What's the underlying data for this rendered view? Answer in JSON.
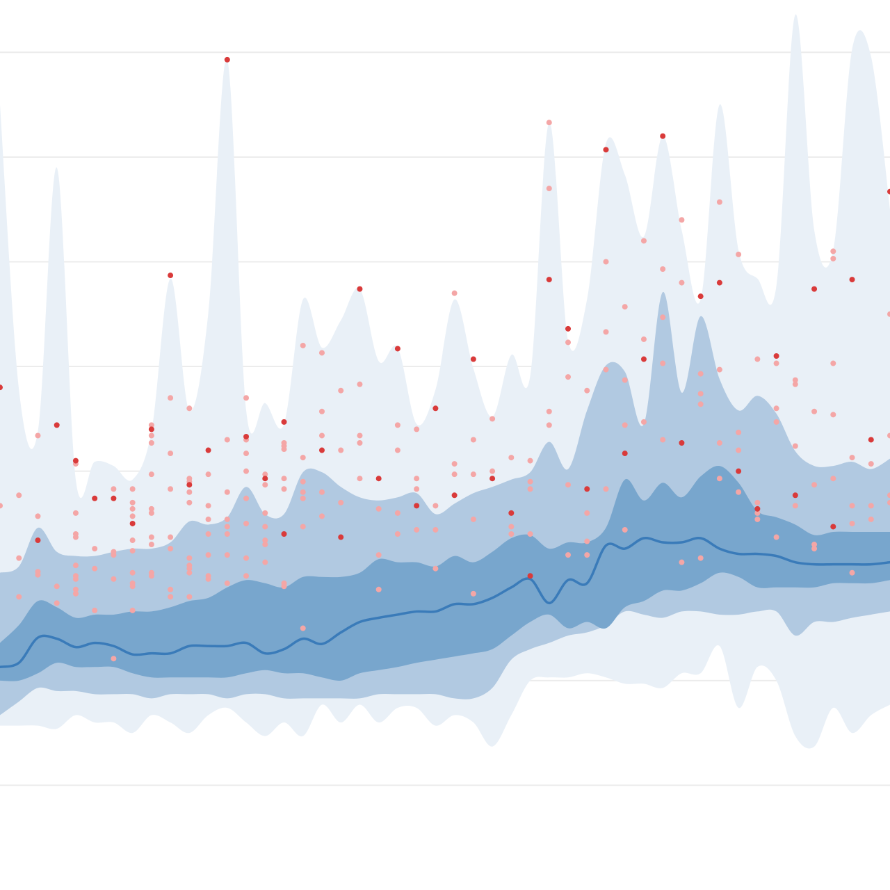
{
  "chart_data": {
    "type": "fan",
    "x": [
      0,
      1,
      2,
      3,
      4,
      5,
      6,
      7,
      8,
      9,
      10,
      11,
      12,
      13,
      14,
      15,
      16,
      17,
      18,
      19,
      20,
      21,
      22,
      23,
      24,
      25,
      26,
      27,
      28,
      29,
      30,
      31,
      32,
      33,
      34,
      35,
      36,
      37,
      38,
      39,
      40,
      41,
      42,
      43,
      44,
      45,
      46,
      47
    ],
    "xlim": [
      0,
      47
    ],
    "ylim": [
      -1,
      7.5
    ],
    "yticks": [
      0,
      1,
      2,
      3,
      4,
      5,
      6,
      7
    ],
    "grid": true,
    "grid_color": "#ececec",
    "bands": [
      {
        "color": "#e9f0f7",
        "upper": [
          6.5,
          3.78,
          3.38,
          5.9,
          2.92,
          3.09,
          3.05,
          2.92,
          3.38,
          4.84,
          3.58,
          4.51,
          6.93,
          3.58,
          3.65,
          3.45,
          4.64,
          4.18,
          4.44,
          4.74,
          4.05,
          4.18,
          3.45,
          3.78,
          4.64,
          3.98,
          3.52,
          4.11,
          3.91,
          6.33,
          4.25,
          4.64,
          6.13,
          5.83,
          5.24,
          6.2,
          5.3,
          4.64,
          6.5,
          5.11,
          4.84,
          4.77,
          7.36,
          5.3,
          5.11,
          7.03,
          6.96,
          5.5
        ],
        "lower": [
          0.57,
          0.57,
          0.57,
          0.54,
          0.67,
          0.6,
          0.6,
          0.5,
          0.67,
          0.6,
          0.5,
          0.67,
          0.74,
          0.6,
          0.47,
          0.6,
          0.47,
          0.77,
          0.6,
          0.77,
          0.6,
          0.74,
          0.74,
          0.57,
          0.67,
          0.6,
          0.37,
          0.67,
          1.0,
          1.03,
          1.03,
          1.07,
          1.03,
          0.97,
          0.97,
          0.93,
          1.07,
          1.07,
          1.33,
          0.74,
          1.13,
          1.0,
          0.47,
          0.37,
          0.74,
          0.5,
          0.67,
          0.77
        ]
      },
      {
        "color": "#b1c9e1",
        "upper": [
          2.03,
          2.09,
          2.46,
          2.23,
          2.19,
          2.19,
          2.23,
          2.26,
          2.26,
          2.32,
          2.52,
          2.49,
          2.56,
          2.85,
          2.59,
          2.59,
          2.99,
          2.99,
          2.85,
          2.75,
          2.72,
          2.75,
          2.79,
          2.59,
          2.69,
          2.79,
          2.85,
          2.92,
          2.99,
          3.28,
          3.02,
          3.58,
          4.01,
          3.95,
          3.45,
          4.71,
          3.75,
          4.48,
          3.88,
          3.58,
          3.72,
          3.55,
          3.19,
          3.05,
          3.05,
          3.09,
          3.02,
          3.12
        ],
        "lower": [
          0.67,
          0.8,
          0.93,
          0.9,
          0.9,
          0.87,
          0.87,
          0.87,
          0.83,
          0.87,
          0.87,
          0.87,
          0.83,
          0.87,
          0.87,
          0.83,
          0.83,
          0.83,
          0.83,
          0.83,
          0.87,
          0.87,
          0.87,
          0.87,
          0.83,
          0.83,
          0.93,
          1.2,
          1.3,
          1.36,
          1.43,
          1.46,
          1.53,
          1.66,
          1.63,
          1.6,
          1.66,
          1.66,
          1.63,
          1.63,
          1.66,
          1.66,
          1.43,
          1.56,
          1.56,
          1.6,
          1.63,
          1.66
        ]
      },
      {
        "color": "#78a6cd",
        "upper": [
          1.36,
          1.53,
          1.76,
          1.7,
          1.6,
          1.63,
          1.63,
          1.66,
          1.66,
          1.7,
          1.76,
          1.79,
          1.89,
          1.96,
          1.93,
          1.89,
          1.99,
          1.99,
          1.99,
          2.03,
          2.16,
          2.13,
          2.13,
          2.09,
          2.19,
          2.13,
          2.23,
          2.36,
          2.39,
          2.26,
          2.32,
          2.32,
          2.46,
          2.92,
          2.72,
          2.89,
          2.75,
          2.95,
          3.05,
          2.89,
          2.62,
          2.56,
          2.49,
          2.39,
          2.42,
          2.42,
          2.42,
          2.42
        ],
        "lower": [
          1.0,
          1.0,
          1.07,
          1.17,
          1.13,
          1.13,
          1.13,
          1.07,
          1.03,
          1.03,
          1.03,
          1.03,
          1.03,
          1.07,
          1.1,
          1.07,
          1.07,
          1.03,
          1.0,
          1.07,
          1.1,
          1.13,
          1.17,
          1.2,
          1.23,
          1.26,
          1.3,
          1.43,
          1.56,
          1.63,
          1.5,
          1.56,
          1.5,
          1.7,
          1.76,
          1.86,
          1.86,
          1.93,
          2.03,
          1.99,
          1.89,
          1.89,
          1.89,
          1.89,
          1.93,
          1.93,
          1.93,
          1.96
        ]
      }
    ],
    "line": {
      "color": "#3a7bb9",
      "values": [
        1.13,
        1.17,
        1.41,
        1.4,
        1.32,
        1.36,
        1.33,
        1.25,
        1.26,
        1.26,
        1.33,
        1.33,
        1.33,
        1.36,
        1.26,
        1.3,
        1.4,
        1.35,
        1.46,
        1.56,
        1.6,
        1.63,
        1.66,
        1.66,
        1.73,
        1.73,
        1.79,
        1.89,
        1.97,
        1.74,
        1.96,
        1.93,
        2.29,
        2.26,
        2.36,
        2.32,
        2.32,
        2.36,
        2.26,
        2.21,
        2.21,
        2.19,
        2.13,
        2.11,
        2.11,
        2.11,
        2.11,
        2.13
      ]
    },
    "points": [
      {
        "color": "#f4a6a6",
        "x": [
          0,
          1,
          1,
          1,
          2,
          2,
          2,
          2,
          3,
          3,
          4,
          4,
          4,
          4,
          4,
          4,
          4,
          4,
          4,
          5,
          5,
          5,
          6,
          6,
          6,
          6,
          6,
          7,
          7,
          7,
          7,
          7,
          7,
          7,
          7,
          7,
          7,
          8,
          8,
          8,
          8,
          8,
          8,
          8,
          8,
          8,
          8,
          9,
          9,
          9,
          9,
          9,
          9,
          9,
          10,
          10,
          10,
          10,
          10,
          10,
          10,
          10,
          10,
          10,
          11,
          11,
          11,
          11,
          11,
          11,
          11,
          12,
          12,
          12,
          12,
          12,
          12,
          12,
          13,
          13,
          13,
          13,
          13,
          13,
          13,
          13,
          14,
          14,
          14,
          14,
          14,
          14,
          14,
          15,
          15,
          15,
          15,
          15,
          15,
          15,
          16,
          16,
          16,
          16,
          16,
          16,
          16,
          17,
          17,
          17,
          17,
          17,
          18,
          18,
          18,
          19,
          19,
          19,
          19,
          20,
          20,
          20,
          21,
          21,
          21,
          21,
          22,
          22,
          22,
          22,
          23,
          23,
          23,
          24,
          24,
          24,
          25,
          25,
          25,
          25,
          26,
          26,
          27,
          27,
          27,
          28,
          28,
          28,
          28,
          29,
          29,
          29,
          29,
          30,
          30,
          30,
          30,
          31,
          31,
          31,
          31,
          32,
          32,
          32,
          32,
          33,
          33,
          33,
          33,
          34,
          34,
          34,
          35,
          35,
          35,
          35,
          36,
          36,
          36,
          37,
          37,
          37,
          37,
          38,
          38,
          38,
          38,
          39,
          39,
          39,
          39,
          40,
          40,
          40,
          40,
          41,
          41,
          41,
          41,
          42,
          42,
          42,
          42,
          43,
          43,
          43,
          43,
          44,
          44,
          44,
          44,
          44,
          45,
          45,
          45,
          45,
          46,
          46,
          46,
          47,
          47,
          47,
          47
        ],
        "values": [
          2.67,
          2.77,
          2.17,
          1.8,
          3.34,
          2.57,
          2.04,
          2.01,
          1.9,
          1.74,
          3.07,
          2.6,
          2.4,
          2.37,
          2.1,
          2.0,
          1.97,
          1.87,
          1.83,
          2.26,
          2.07,
          1.67,
          2.83,
          2.23,
          2.2,
          1.97,
          1.21,
          2.83,
          2.7,
          2.64,
          2.57,
          2.34,
          2.24,
          2.03,
          1.93,
          1.9,
          1.67,
          3.44,
          3.34,
          3.27,
          2.97,
          2.64,
          2.6,
          2.37,
          2.3,
          2.03,
          2.0,
          3.7,
          3.17,
          2.83,
          2.37,
          2.26,
          1.87,
          1.8,
          3.6,
          2.93,
          2.9,
          2.8,
          2.7,
          2.17,
          2.1,
          2.07,
          2.03,
          1.8,
          2.97,
          2.67,
          2.54,
          2.4,
          2.2,
          2.0,
          1.97,
          3.3,
          2.8,
          2.54,
          2.47,
          2.4,
          2.2,
          1.93,
          3.7,
          3.3,
          3.17,
          3.0,
          2.74,
          2.5,
          2.17,
          2.0,
          2.97,
          2.87,
          2.6,
          2.47,
          2.34,
          2.3,
          2.13,
          3.27,
          3.24,
          3.21,
          2.93,
          2.83,
          1.93,
          1.9,
          4.2,
          3.13,
          2.9,
          2.8,
          2.74,
          2.47,
          1.5,
          4.13,
          3.57,
          3.34,
          2.8,
          2.57,
          3.77,
          3.2,
          2.7,
          3.83,
          3.34,
          3.27,
          2.93,
          2.64,
          2.2,
          1.87,
          3.44,
          3.2,
          2.6,
          2.4,
          3.4,
          2.93,
          2.83,
          2.44,
          2.67,
          2.44,
          2.07,
          4.7,
          3.07,
          2.97,
          3.3,
          2.97,
          2.54,
          1.83,
          3.5,
          3.0,
          3.13,
          2.47,
          2.4,
          3.1,
          2.9,
          2.83,
          2.4,
          6.33,
          5.7,
          3.57,
          3.44,
          4.23,
          3.9,
          2.87,
          2.2,
          3.77,
          2.6,
          2.33,
          2.2,
          5.0,
          4.33,
          3.97,
          2.83,
          4.57,
          3.87,
          3.44,
          2.44,
          5.2,
          4.26,
          3.47,
          4.93,
          4.47,
          4.03,
          3.3,
          5.4,
          4.8,
          2.13,
          3.93,
          3.74,
          3.64,
          2.17,
          5.57,
          3.97,
          3.27,
          2.93,
          5.07,
          3.37,
          3.2,
          2.8,
          4.07,
          2.7,
          2.6,
          2.54,
          4.03,
          3.6,
          3.47,
          2.37,
          3.87,
          3.83,
          3.24,
          2.67,
          3.57,
          2.87,
          2.3,
          2.26,
          5.1,
          5.03,
          4.03,
          3.54,
          2.93,
          3.13,
          2.67,
          2.5,
          2.03,
          3.07,
          2.67,
          2.54,
          4.5,
          3.34,
          2.77,
          2.7
        ]
      },
      {
        "color": "#d93a3a",
        "x": [
          0,
          2,
          3,
          4,
          5,
          6,
          7,
          8,
          9,
          10,
          11,
          12,
          13,
          14,
          15,
          15,
          17,
          18,
          19,
          20,
          21,
          22,
          23,
          24,
          25,
          26,
          27,
          28,
          29,
          30,
          31,
          32,
          33,
          34,
          35,
          36,
          37,
          38,
          39,
          40,
          41,
          42,
          43,
          44,
          45,
          46,
          47
        ],
        "values": [
          3.8,
          2.34,
          3.44,
          3.1,
          2.74,
          2.74,
          2.5,
          3.4,
          4.87,
          2.87,
          3.2,
          6.93,
          3.33,
          2.93,
          3.47,
          2.4,
          3.2,
          2.37,
          4.74,
          2.93,
          4.17,
          2.67,
          3.6,
          2.77,
          4.07,
          2.93,
          2.6,
          2.0,
          4.83,
          4.36,
          2.83,
          6.07,
          3.17,
          4.07,
          6.2,
          3.27,
          4.67,
          4.8,
          3.0,
          2.64,
          4.1,
          2.77,
          4.74,
          2.47,
          4.83,
          3.3,
          5.67
        ]
      }
    ]
  }
}
